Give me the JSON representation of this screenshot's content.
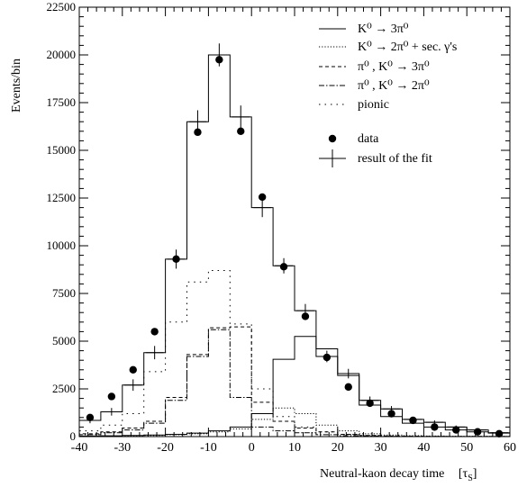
{
  "chart_data": {
    "type": "line",
    "ylabel": "Events/bin",
    "xlabel_text": "Neutral-kaon decay time",
    "xlabel_unit": "[τ",
    "xlabel_unit_sub": "S",
    "xlabel_unit_close": "]",
    "xlim": [
      -40,
      60
    ],
    "ylim": [
      0,
      22500
    ],
    "x_ticks": [
      -40,
      -30,
      -20,
      -10,
      0,
      10,
      20,
      30,
      40,
      50,
      60
    ],
    "y_ticks": [
      0,
      2500,
      5000,
      7500,
      10000,
      12500,
      15000,
      17500,
      20000,
      22500
    ],
    "bin_edges": [
      -40,
      -35,
      -30,
      -25,
      -20,
      -15,
      -10,
      -5,
      0,
      5,
      10,
      15,
      20,
      25,
      30,
      35,
      40,
      45,
      50,
      55,
      60
    ],
    "series": [
      {
        "name": "K0 to 3pi0",
        "style": "solid",
        "values": [
          30,
          40,
          60,
          80,
          120,
          180,
          300,
          500,
          1200,
          4050,
          5250,
          4600,
          3200,
          1650,
          1050,
          700,
          500,
          350,
          250,
          180
        ]
      },
      {
        "name": "K0 to 2pi0 + sec. gammas",
        "style": "dotted",
        "values": [
          20,
          30,
          40,
          60,
          100,
          150,
          250,
          400,
          900,
          1500,
          1200,
          600,
          300,
          150,
          80,
          50,
          30,
          20,
          15,
          10
        ]
      },
      {
        "name": "pi0, K0 to 3pi0",
        "style": "dashed",
        "values": [
          150,
          250,
          450,
          800,
          2050,
          4300,
          5700,
          5750,
          1800,
          800,
          450,
          250,
          120,
          60,
          30,
          20,
          10,
          5,
          5,
          5
        ]
      },
      {
        "name": "pi0, K0 to 2pi0",
        "style": "dashdot",
        "values": [
          100,
          200,
          350,
          700,
          1900,
          4200,
          5600,
          2050,
          500,
          300,
          200,
          100,
          50,
          30,
          20,
          10,
          5,
          5,
          5,
          5
        ]
      },
      {
        "name": "pionic",
        "style": "sparse-dotted",
        "values": [
          300,
          600,
          1200,
          3400,
          6000,
          8100,
          8700,
          5900,
          2500,
          1050,
          500,
          250,
          120,
          60,
          30,
          20,
          10,
          5,
          5,
          5
        ]
      },
      {
        "name": "result of the fit",
        "style": "histogram-with-error-crosses",
        "values": [
          850,
          1300,
          2700,
          4400,
          9300,
          16500,
          20000,
          16750,
          12000,
          8950,
          6600,
          4200,
          3300,
          1900,
          1450,
          900,
          750,
          500,
          350,
          200
        ],
        "errors": [
          150,
          200,
          300,
          350,
          500,
          600,
          600,
          600,
          500,
          400,
          350,
          300,
          250,
          200,
          150,
          100,
          100,
          80,
          60,
          50
        ]
      },
      {
        "name": "data",
        "style": "markers",
        "x": [
          -37.5,
          -32.5,
          -27.5,
          -22.5,
          -17.5,
          -12.5,
          -7.5,
          -2.5,
          2.5,
          7.5,
          12.5,
          17.5,
          22.5,
          27.5,
          32.5,
          37.5,
          42.5,
          47.5,
          52.5,
          57.5
        ],
        "y": [
          1000,
          2100,
          3500,
          5500,
          9300,
          15950,
          19750,
          16000,
          12550,
          8900,
          6300,
          4150,
          2600,
          1750,
          1200,
          850,
          500,
          350,
          250,
          150
        ]
      }
    ],
    "legend": {
      "placement": "top-right",
      "entries": [
        {
          "style": "solid",
          "label": "K⁰ → 3π⁰"
        },
        {
          "style": "dotted",
          "label": "K⁰ → 2π⁰ + sec. γ's"
        },
        {
          "style": "dashed",
          "label": "π⁰ , K⁰ → 3π⁰"
        },
        {
          "style": "dashdot",
          "label": "π⁰ , K⁰ → 2π⁰"
        },
        {
          "style": "sparse-dotted",
          "label": "pionic"
        },
        {
          "style": "marker",
          "label": "data"
        },
        {
          "style": "cross",
          "label": "result of the fit"
        }
      ]
    }
  }
}
